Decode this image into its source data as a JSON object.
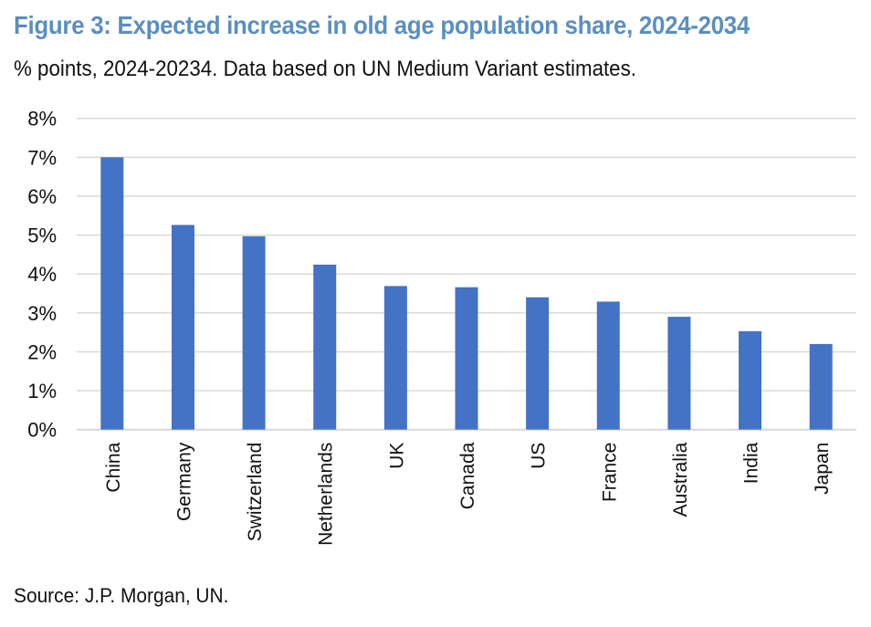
{
  "chart_data": {
    "type": "bar",
    "title": "Figure 3: Expected increase in old age population share, 2024-2034",
    "subtitle": "% points, 2024-20234. Data based on UN Medium Variant estimates.",
    "source": "Source: J.P. Morgan, UN.",
    "xlabel": "",
    "ylabel": "",
    "categories": [
      "China",
      "Germany",
      "Switzerland",
      "Netherlands",
      "UK",
      "Canada",
      "US",
      "France",
      "Australia",
      "India",
      "Japan"
    ],
    "values": [
      7.0,
      5.26,
      4.97,
      4.24,
      3.69,
      3.66,
      3.4,
      3.29,
      2.9,
      2.53,
      2.2
    ],
    "value_unit": "%",
    "ylim": [
      0,
      8
    ],
    "yticks": [
      0,
      1,
      2,
      3,
      4,
      5,
      6,
      7,
      8
    ],
    "ytick_labels": [
      "0%",
      "1%",
      "2%",
      "3%",
      "4%",
      "5%",
      "6%",
      "7%",
      "8%"
    ],
    "grid": true,
    "legend": "none",
    "colors": {
      "bar": "#4472c4",
      "grid": "#d9d9d9",
      "title": "#5a8fc0"
    }
  }
}
